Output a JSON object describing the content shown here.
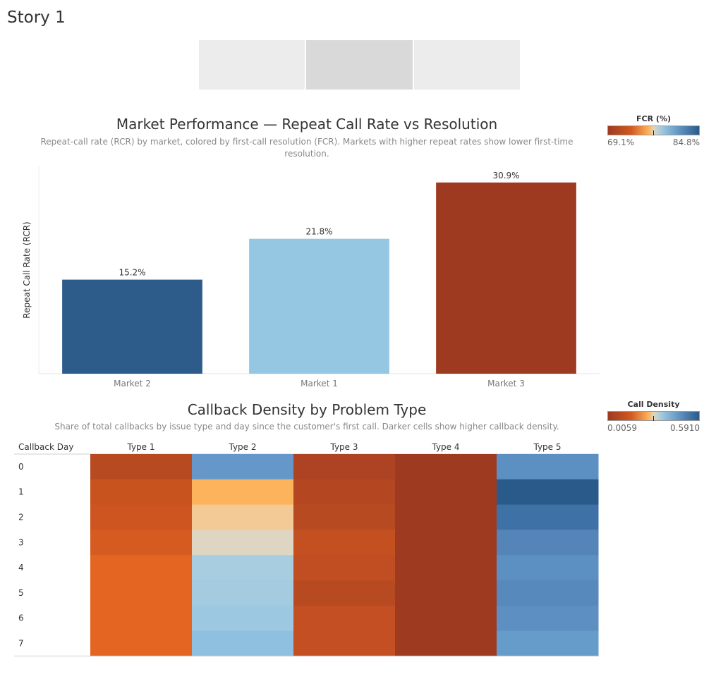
{
  "story": {
    "title": "Story 1",
    "tabs": [
      "",
      "",
      ""
    ],
    "active_tab": 1
  },
  "bar_section": {
    "title": "Market Performance — Repeat Call Rate vs Resolution",
    "subtitle": "Repeat-call rate (RCR) by market, colored by first-call resolution (FCR). Markets with higher repeat rates show lower first-time resolution.",
    "legend": {
      "title": "FCR (%)",
      "min_label": "69.1%",
      "max_label": "84.8%"
    }
  },
  "heat_section": {
    "title": "Callback Density by Problem Type",
    "subtitle": "Share of total callbacks by issue type and day since the customer's first call. Darker cells show higher callback density.",
    "legend": {
      "title": "Call Density",
      "min_label": "0.0059",
      "max_label": "0.5910"
    }
  },
  "chart_data": [
    {
      "type": "bar",
      "title": "Market Performance — Repeat Call Rate vs Resolution",
      "ylabel": "Repeat Call Rate (RCR)",
      "xlabel": "",
      "categories": [
        "Market 2",
        "Market 1",
        "Market 3"
      ],
      "values": [
        15.2,
        21.8,
        30.9
      ],
      "value_labels": [
        "15.2%",
        "21.8%",
        "30.9%"
      ],
      "colors": [
        "#2d5c8a",
        "#95c6e2",
        "#9e3a20"
      ],
      "ylim": [
        0,
        33.5
      ],
      "grid": false,
      "legend": "top-right"
    },
    {
      "type": "heatmap",
      "title": "Callback Density by Problem Type",
      "row_header": "Callback Day",
      "columns": [
        "Type 1",
        "Type 2",
        "Type 3",
        "Type 4",
        "Type 5"
      ],
      "rows": [
        "0",
        "1",
        "2",
        "3",
        "4",
        "5",
        "6",
        "7"
      ],
      "colors": [
        [
          "#b84a22",
          "#6598c8",
          "#ad4322",
          "#9e3a20",
          "#5c8fc2"
        ],
        [
          "#c8531f",
          "#fdb35c",
          "#b44722",
          "#9e3a20",
          "#2a5a8a"
        ],
        [
          "#cf5520",
          "#f3c996",
          "#b84a22",
          "#9e3a20",
          "#3e72a6"
        ],
        [
          "#d65b20",
          "#dfd5c3",
          "#c45021",
          "#9e3a20",
          "#5585b8"
        ],
        [
          "#e46522",
          "#a9cde0",
          "#c04e22",
          "#9e3a20",
          "#5c8fc2"
        ],
        [
          "#e46522",
          "#a4cbe0",
          "#b84a22",
          "#9e3a20",
          "#5889bc"
        ],
        [
          "#e46522",
          "#9dc8e2",
          "#c44f22",
          "#9e3a20",
          "#5e8fc2"
        ],
        [
          "#e46522",
          "#8fc0e0",
          "#c44f22",
          "#9e3a20",
          "#659cca"
        ]
      ],
      "legend": "top-right"
    }
  ]
}
